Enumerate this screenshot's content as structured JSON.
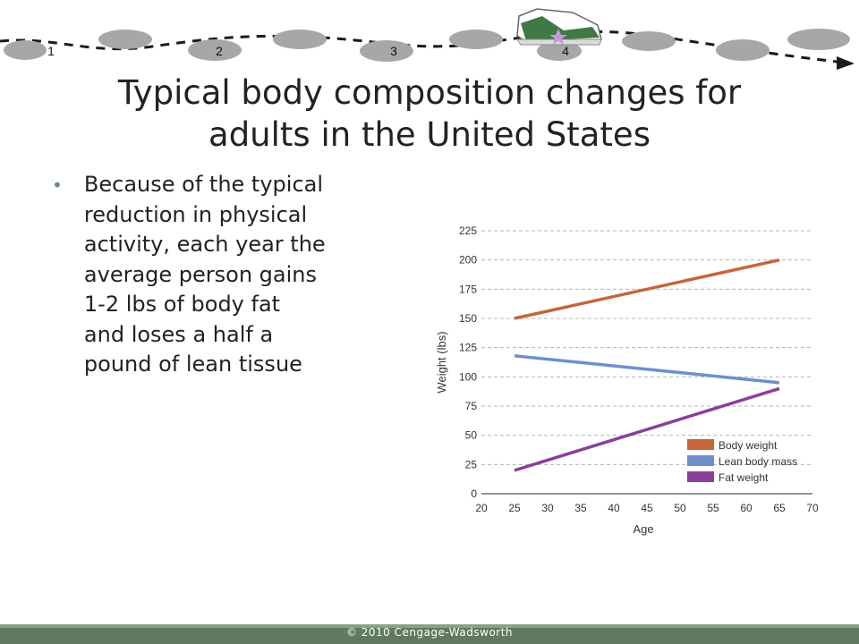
{
  "header": {
    "step_numbers": [
      "1",
      "2",
      "3",
      "4"
    ]
  },
  "title": {
    "line1": "Typical body composition changes for",
    "line2": "adults in the United States"
  },
  "bullet": {
    "lines": [
      "Because of the typical",
      "reduction in physical",
      "activity, each year the",
      "average person gains",
      "1-2 lbs of body fat",
      "and loses a half a",
      "pound of lean tissue"
    ]
  },
  "chart_data": {
    "type": "line",
    "xlabel": "Age",
    "ylabel": "Weight (lbs)",
    "xlim": [
      20,
      70
    ],
    "ylim": [
      0,
      225
    ],
    "x_ticks": [
      "20",
      "25",
      "30",
      "35",
      "40",
      "45",
      "50",
      "55",
      "60",
      "65",
      "70"
    ],
    "y_ticks": [
      "0",
      "25",
      "50",
      "75",
      "100",
      "125",
      "150",
      "175",
      "200",
      "225"
    ],
    "grid": "horizontal dashed",
    "legend_position": "bottom-right",
    "series": [
      {
        "name": "Body weight",
        "color": "#c8643a",
        "x": [
          25,
          65
        ],
        "y": [
          150,
          200
        ]
      },
      {
        "name": "Lean body mass",
        "color": "#6f8fcc",
        "x": [
          25,
          65
        ],
        "y": [
          118,
          95
        ]
      },
      {
        "name": "Fat weight",
        "color": "#8a3f99",
        "x": [
          25,
          65
        ],
        "y": [
          20,
          90
        ]
      }
    ]
  },
  "footer": {
    "copyright": "© 2010 Cengage-Wadsworth"
  }
}
